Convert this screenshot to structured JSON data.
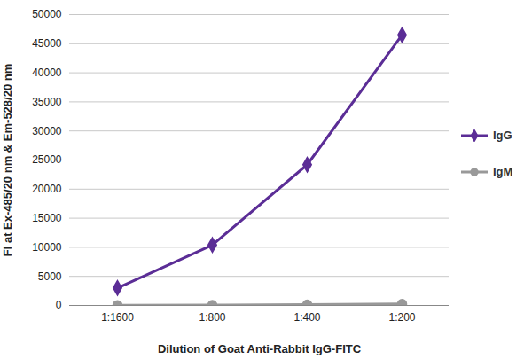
{
  "chart_data": {
    "type": "line",
    "x_label": "Dilution of Goat Anti-Rabbit IgG-FITC",
    "y_label": "FI at Ex-485/20 nm & Em-528/20 nm",
    "categories": [
      "1:1600",
      "1:800",
      "1:400",
      "1:200"
    ],
    "series": [
      {
        "name": "IgG",
        "color": "#5b2d96",
        "marker": "diamond",
        "values": [
          3000,
          10400,
          24200,
          46500
        ]
      },
      {
        "name": "IgM",
        "color": "#999999",
        "marker": "circle",
        "values": [
          50,
          60,
          150,
          250
        ]
      }
    ],
    "ylim": [
      0,
      50000
    ],
    "yticks": [
      0,
      5000,
      10000,
      15000,
      20000,
      25000,
      30000,
      35000,
      40000,
      45000,
      50000
    ],
    "grid": true,
    "legend": "right"
  }
}
